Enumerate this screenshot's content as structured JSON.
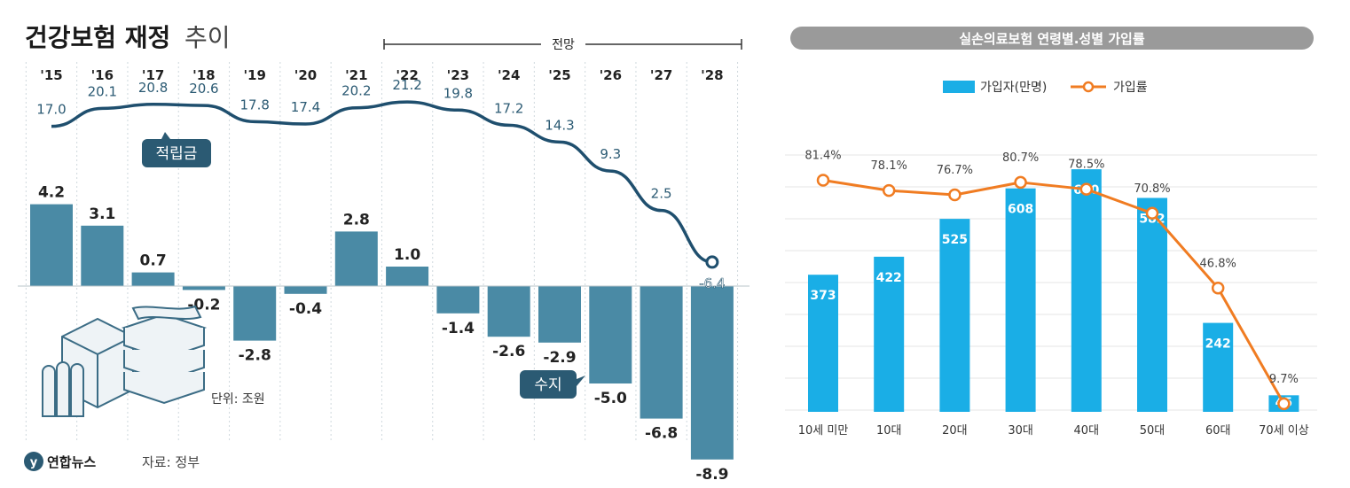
{
  "chart_data": [
    {
      "type": "bar",
      "title": "건강보험 재정",
      "subtitle": "추이",
      "categories": [
        "'15",
        "'16",
        "'17",
        "'18",
        "'19",
        "'20",
        "'21",
        "'22",
        "'23",
        "'24",
        "'25",
        "'26",
        "'27",
        "'28"
      ],
      "forecast_label": "전망",
      "unit_note": "단위: 조원",
      "source": "자료: 정부",
      "brand": "연합뉴스",
      "series": [
        {
          "name": "수지",
          "type": "bar",
          "values": [
            4.2,
            3.1,
            0.7,
            -0.2,
            -2.8,
            -0.4,
            2.8,
            1.0,
            -1.4,
            -2.6,
            -2.9,
            -5.0,
            -6.8,
            -8.9
          ],
          "labels": [
            "4.2",
            "3.1",
            "0.7",
            "-0.2",
            "-2.8",
            "-0.4",
            "2.8",
            "1.0",
            "-1.4",
            "-2.6",
            "-2.9",
            "-5.0",
            "-6.8",
            "-8.9"
          ]
        },
        {
          "name": "적립금",
          "type": "line",
          "values": [
            17.0,
            20.1,
            20.8,
            20.6,
            17.8,
            17.4,
            20.2,
            21.2,
            19.8,
            17.2,
            14.3,
            9.3,
            2.5,
            -6.4
          ],
          "labels": [
            "17.0",
            "20.1",
            "20.8",
            "20.6",
            "17.8",
            "17.4",
            "20.2",
            "21.2",
            "19.8",
            "17.2",
            "14.3",
            "9.3",
            "2.5",
            "-6.4"
          ]
        }
      ],
      "colors": {
        "bar": "#4a8aa5",
        "line": "#1f4f6e",
        "grid": "#cfd8dd",
        "text": "#222222"
      }
    },
    {
      "type": "bar",
      "title": "실손의료보험 연령별.성별 가입률",
      "categories": [
        "10세 미만",
        "10대",
        "20대",
        "30대",
        "40대",
        "50대",
        "60대",
        "70세 이상"
      ],
      "series": [
        {
          "name": "가입자(만명)",
          "type": "bar",
          "values": [
            373,
            422,
            525,
            608,
            660,
            582,
            242,
            45
          ],
          "labels": [
            "373",
            "422",
            "525",
            "608",
            "660",
            "582",
            "242",
            "45"
          ]
        },
        {
          "name": "가입률",
          "type": "line",
          "values": [
            81.4,
            78.1,
            76.7,
            80.7,
            78.5,
            70.8,
            46.8,
            9.7
          ],
          "labels": [
            "81.4%",
            "78.1%",
            "76.7%",
            "80.7%",
            "78.5%",
            "70.8%",
            "46.8%",
            "9.7%"
          ]
        }
      ],
      "colors": {
        "bar": "#1aaee6",
        "line": "#f07c22",
        "title_bg": "#9a9a9a",
        "title_text": "#ffffff"
      }
    }
  ]
}
